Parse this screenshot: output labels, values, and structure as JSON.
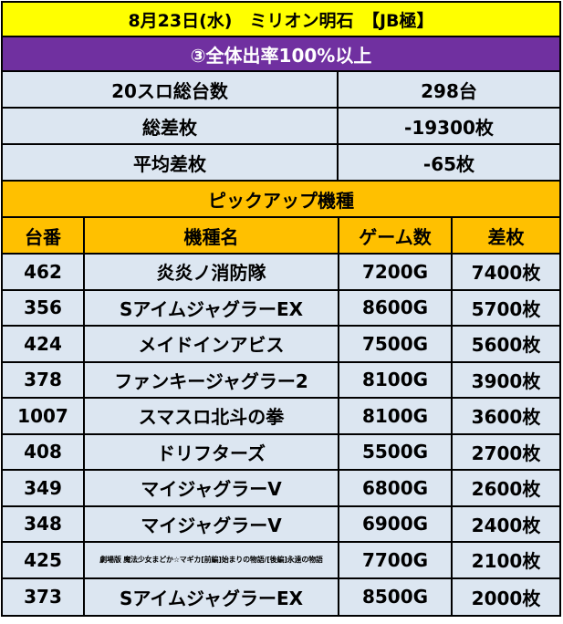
{
  "title": "8月23日(水)　ミリオン明石　【JB極】",
  "subtitle": "③全体出率100%以上",
  "summary": [
    {
      "label": "20スロ総台数",
      "value": "298台"
    },
    {
      "label": "総差枚",
      "value": "-19300枚"
    },
    {
      "label": "平均差枚",
      "value": "-65枚"
    }
  ],
  "pickup_title": "ピックアップ機種",
  "columns": [
    "台番",
    "機種名",
    "ゲーム数",
    "差枚"
  ],
  "rows": [
    {
      "no": "462",
      "machine": "炎炎ノ消防隊",
      "games": "7200G",
      "diff": "7400枚"
    },
    {
      "no": "356",
      "machine": "SアイムジャグラーEX",
      "games": "8600G",
      "diff": "5700枚"
    },
    {
      "no": "424",
      "machine": "メイドインアビス",
      "games": "7500G",
      "diff": "5600枚"
    },
    {
      "no": "378",
      "machine": "ファンキージャグラー2",
      "games": "8100G",
      "diff": "3900枚"
    },
    {
      "no": "1007",
      "machine": "スマスロ北斗の拳",
      "games": "8100G",
      "diff": "3600枚"
    },
    {
      "no": "408",
      "machine": "ドリフターズ",
      "games": "5500G",
      "diff": "2700枚"
    },
    {
      "no": "349",
      "machine": "マイジャグラーV",
      "games": "6800G",
      "diff": "2600枚"
    },
    {
      "no": "348",
      "machine": "マイジャグラーV",
      "games": "6900G",
      "diff": "2400枚"
    },
    {
      "no": "425",
      "machine": "劇場版 魔法少女まどか☆マギカ[前編]始まりの物語/[後編]永遠の物語",
      "games": "7700G",
      "diff": "2100枚"
    },
    {
      "no": "373",
      "machine": "SアイムジャグラーEX",
      "games": "8500G",
      "diff": "2000枚"
    }
  ]
}
